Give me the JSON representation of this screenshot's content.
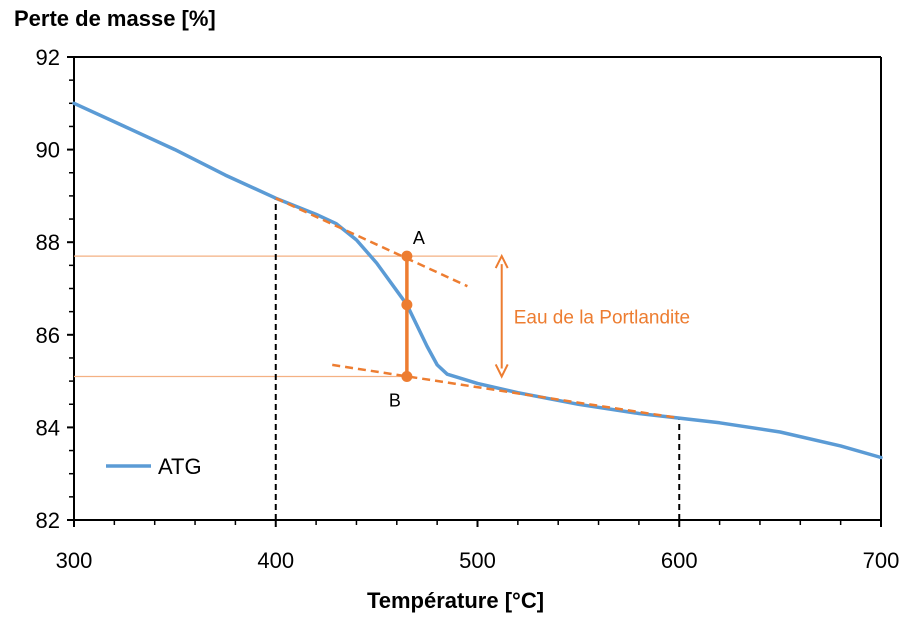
{
  "chart_data": {
    "type": "line",
    "ylabel": "Perte de masse [%]",
    "xlabel": "Température [°C]",
    "xlim": [
      300,
      700
    ],
    "ylim": [
      82,
      92
    ],
    "xticks": [
      300,
      400,
      500,
      600,
      700
    ],
    "yticks": [
      82,
      84,
      86,
      88,
      90,
      92
    ],
    "grid": false,
    "legend_position": "bottom-left",
    "series": [
      {
        "name": "ATG",
        "color": "#5b9bd5",
        "x": [
          300,
          325,
          350,
          375,
          400,
          420,
          430,
          440,
          450,
          460,
          465,
          470,
          475,
          480,
          485,
          500,
          520,
          550,
          580,
          600,
          620,
          650,
          680,
          700
        ],
        "y": [
          91.0,
          90.5,
          90.0,
          89.45,
          88.95,
          88.6,
          88.4,
          88.05,
          87.55,
          86.95,
          86.65,
          86.2,
          85.75,
          85.35,
          85.15,
          84.95,
          84.75,
          84.5,
          84.3,
          84.2,
          84.1,
          83.9,
          83.6,
          83.35
        ]
      }
    ],
    "annotations": {
      "color": "#ed7d31",
      "tangent_upper": {
        "x": [
          400,
          495
        ],
        "y": [
          88.95,
          87.05
        ]
      },
      "tangent_lower": {
        "x": [
          428,
          600
        ],
        "y": [
          85.35,
          84.2
        ]
      },
      "vertical_bar": {
        "x": 465,
        "y": [
          85.1,
          87.7
        ]
      },
      "point_A": {
        "x": 465,
        "y": 87.7,
        "label": "A"
      },
      "point_mid": {
        "x": 465,
        "y": 86.65
      },
      "point_B": {
        "x": 465,
        "y": 85.1,
        "label": "B"
      },
      "hline_A": {
        "y": 87.7,
        "x": [
          300,
          510
        ]
      },
      "hline_B": {
        "y": 85.1,
        "x": [
          300,
          465
        ]
      },
      "arrow": {
        "x": 512,
        "y": [
          85.1,
          87.7
        ],
        "label": "Eau de la Portlandite"
      },
      "vline_400": {
        "x": 400,
        "y": [
          82,
          88.95
        ]
      },
      "vline_600": {
        "x": 600,
        "y": [
          82,
          84.2
        ]
      }
    }
  }
}
